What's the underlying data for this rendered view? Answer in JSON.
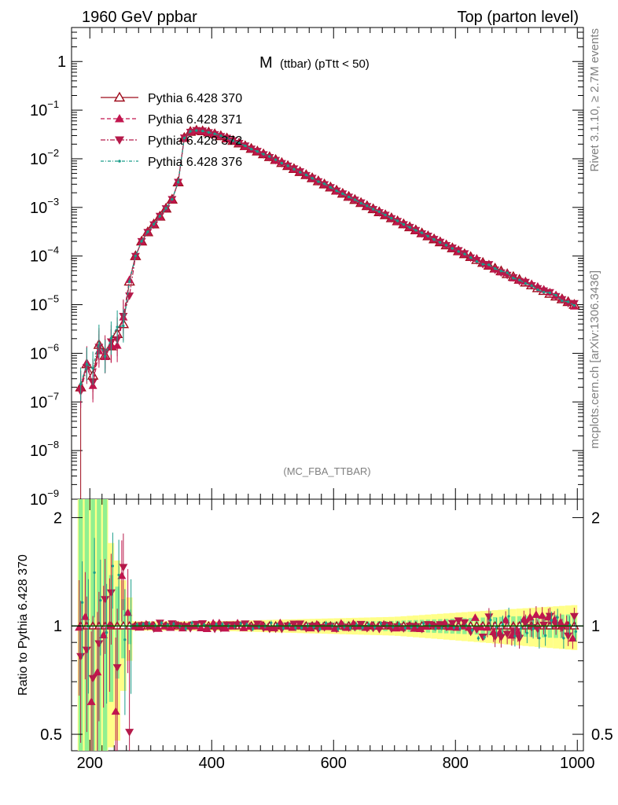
{
  "header": {
    "left": "1960 GeV ppbar",
    "right": "Top (parton level)"
  },
  "side_texts": {
    "rivet": "Rivet 3.1.10, ≥ 2.7M events",
    "mcplots": "mcplots.cern.ch [arXiv:1306.3436]"
  },
  "analysis_label": "(MC_FBA_TTBAR)",
  "colors": {
    "s370": "#9e0b1b",
    "s371": "#c2154e",
    "s372": "#b51a4a",
    "s376": "#1a9e8a",
    "band_green": "#90f090",
    "band_yellow": "#ffff88",
    "ratio_line": "#006600"
  },
  "chart_data": [
    {
      "type": "line",
      "title": "M",
      "title_rest": "(ttbar) (pTtt < 50)",
      "yscale": "log",
      "xlim": [
        170,
        1010
      ],
      "ylim": [
        1e-09,
        5
      ],
      "y_ticks": [
        {
          "v": 1e-09,
          "base": "10",
          "exp": "−9"
        },
        {
          "v": 1e-08,
          "base": "10",
          "exp": "−8"
        },
        {
          "v": 1e-07,
          "base": "10",
          "exp": "−7"
        },
        {
          "v": 1e-06,
          "base": "10",
          "exp": "−6"
        },
        {
          "v": 1e-05,
          "base": "10",
          "exp": "−5"
        },
        {
          "v": 0.0001,
          "base": "10",
          "exp": "−4"
        },
        {
          "v": 0.001,
          "base": "10",
          "exp": "−3"
        },
        {
          "v": 0.01,
          "base": "10",
          "exp": "−2"
        },
        {
          "v": 0.1,
          "base": "10",
          "exp": "−1"
        },
        {
          "v": 1,
          "base": "1",
          "exp": ""
        }
      ],
      "series": [
        {
          "name": "Pythia 6.428 370",
          "color": "#9e0b1b",
          "marker": "triangle-up-open",
          "dash": "",
          "points": [
            [
              185,
              2e-07
            ],
            [
              195,
              6e-07
            ],
            [
              205,
              3.5e-07
            ],
            [
              215,
              1.5e-06
            ],
            [
              225,
              9e-07
            ],
            [
              235,
              1.4e-06
            ],
            [
              245,
              2.5e-06
            ],
            [
              255,
              4e-06
            ],
            [
              265,
              3e-05
            ],
            [
              275,
              0.0001
            ],
            [
              285,
              0.0002
            ],
            [
              295,
              0.00031
            ],
            [
              305,
              0.00045
            ],
            [
              315,
              0.00065
            ],
            [
              325,
              0.00095
            ],
            [
              335,
              0.00145
            ],
            [
              345,
              0.0033
            ],
            [
              355,
              0.027
            ],
            [
              365,
              0.036
            ],
            [
              375,
              0.038
            ],
            [
              385,
              0.037
            ],
            [
              395,
              0.035
            ],
            [
              410,
              0.031
            ],
            [
              430,
              0.025
            ],
            [
              450,
              0.0195
            ],
            [
              475,
              0.0142
            ],
            [
              500,
              0.0102
            ],
            [
              550,
              0.005
            ],
            [
              600,
              0.0024
            ],
            [
              650,
              0.00115
            ],
            [
              700,
              0.00056
            ],
            [
              750,
              0.000275
            ],
            [
              800,
              0.000135
            ],
            [
              850,
              6.8e-05
            ],
            [
              900,
              3.5e-05
            ],
            [
              950,
              1.8e-05
            ],
            [
              975,
              1.3e-05
            ],
            [
              995,
              1e-05
            ]
          ]
        },
        {
          "name": "Pythia 6.428 371",
          "color": "#c2154e",
          "marker": "triangle-up",
          "dash": "5,3"
        },
        {
          "name": "Pythia 6.428 372",
          "color": "#b51a4a",
          "marker": "triangle-down",
          "dash": "6,2,2,2"
        },
        {
          "name": "Pythia 6.428 376",
          "color": "#1a9e8a",
          "marker": "dot",
          "dash": "4,2,1,2"
        }
      ]
    },
    {
      "type": "line",
      "ylabel": "Ratio to Pythia 6.428 370",
      "xlim": [
        170,
        1010
      ],
      "ylim": [
        0.45,
        2.25
      ],
      "x_ticks": [
        200,
        400,
        600,
        800,
        1000
      ],
      "y_ticks": [
        0.5,
        1,
        2
      ],
      "reference": 1
    }
  ]
}
